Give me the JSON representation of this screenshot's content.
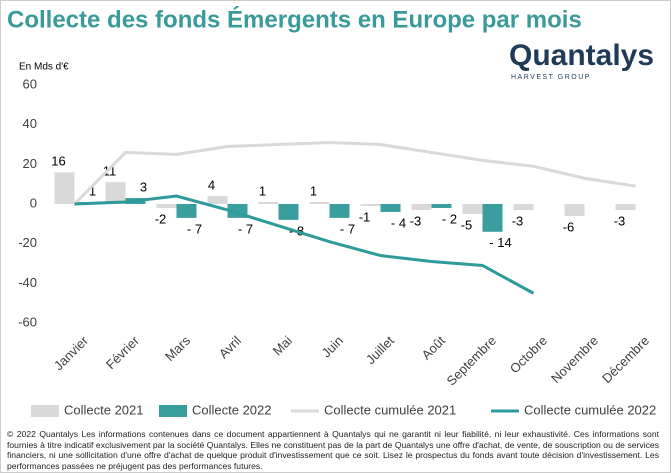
{
  "chart_data": {
    "type": "bar",
    "title": "Collecte des fonds Émergents en Europe par mois",
    "logo": "Quantalys",
    "logo_subtitle": "HARVEST GROUP",
    "y_axis_label": "En Mds d'€",
    "categories": [
      "Janvier",
      "Février",
      "Mars",
      "Avril",
      "Mai",
      "Juin",
      "Juillet",
      "Août",
      "Septembre",
      "Octobre",
      "Novembre",
      "Décembre"
    ],
    "series": [
      {
        "name": "Collecte 2021",
        "type": "bar",
        "color": "#d9d9d9",
        "values": [
          16,
          11,
          -2,
          4,
          1,
          1,
          -1,
          -3,
          -5,
          -3,
          -6,
          -3
        ]
      },
      {
        "name": "Collecte 2022",
        "type": "bar",
        "color": "#3a9e9e",
        "values": [
          1,
          3,
          -7,
          -7,
          -8,
          -7,
          -4,
          -2,
          -14,
          null,
          null,
          null
        ],
        "value_labels": [
          "1",
          "3",
          "- 7",
          "- 7",
          "- 8",
          "- 7",
          "- 4",
          "- 2",
          "- 14",
          null,
          null,
          null
        ]
      },
      {
        "name": "Collecte cumulée 2021",
        "type": "line",
        "color": "#d9d9d9",
        "values": [
          0,
          26,
          25,
          29,
          30,
          31,
          30,
          26,
          22,
          19,
          13,
          9
        ]
      },
      {
        "name": "Collecte cumulée 2022",
        "type": "line",
        "color": "#2e9a9a",
        "values": [
          0,
          1,
          4,
          -3,
          -11,
          -19,
          -26,
          -29,
          -31,
          -45,
          null,
          null
        ]
      }
    ],
    "ylim": [
      -60,
      60
    ],
    "yticks": [
      -60,
      -40,
      -20,
      0,
      20,
      40,
      60
    ],
    "grid": false,
    "footer": "© 2022 Quantalys Les informations contenues dans ce document appartiennent à Quantalys qui ne garantit ni leur fiabilité, ni leur exhaustivité. Ces informations sont fournies à titre indicatif exclusivement par la société Quantalys. Elles ne constituent pas de la part de Quantalys une offre d'achat, de vente, de souscription ou de services financiers, ni une sollicitation d'une offre d'achat de quelque produit d'investissement que ce soit. Lisez le prospectus du fonds avant toute décision d'investissement. Les performances passées ne préjugent pas des performances futures."
  }
}
